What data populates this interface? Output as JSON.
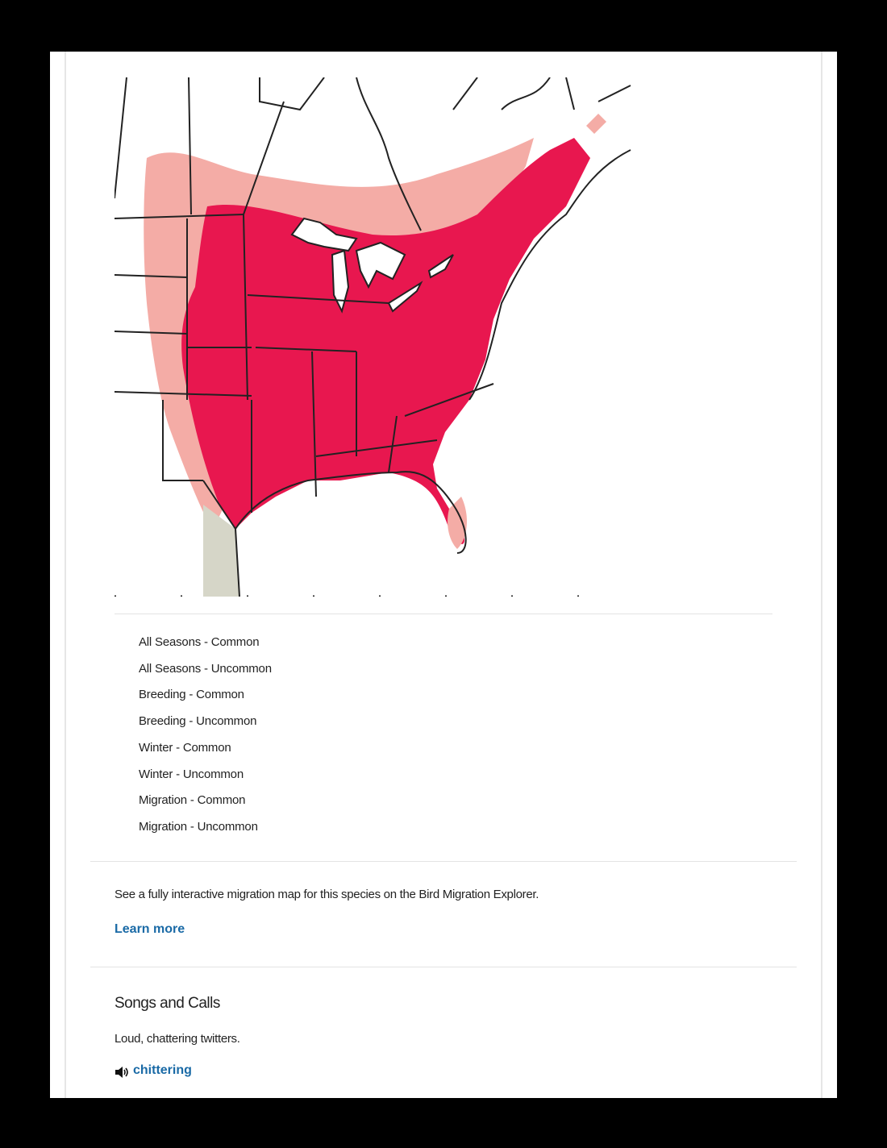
{
  "legend": {
    "items": [
      "All Seasons - Common",
      "All Seasons - Uncommon",
      "Breeding - Common",
      "Breeding - Uncommon",
      "Winter - Common",
      "Winter - Uncommon",
      "Migration - Common",
      "Migration - Uncommon"
    ]
  },
  "migration": {
    "text": "See a fully interactive migration map for this species on the Bird Migration Explorer.",
    "link": "Learn more"
  },
  "songs": {
    "title": "Songs and Calls",
    "description": "Loud, chattering twitters.",
    "audio_link": "chittering"
  }
}
